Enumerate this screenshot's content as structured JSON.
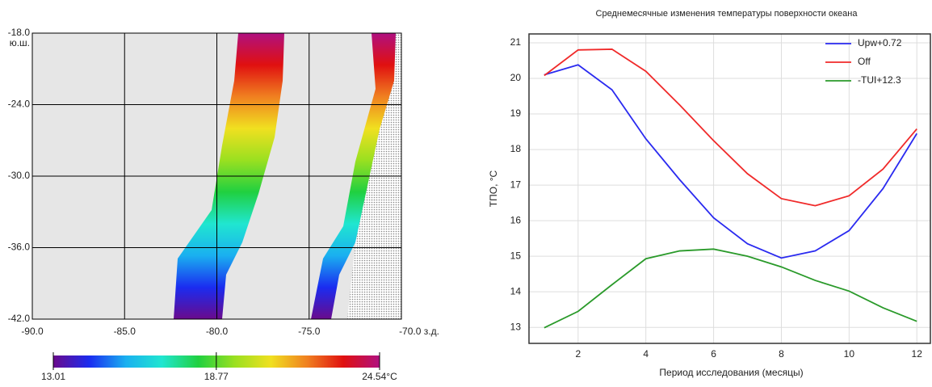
{
  "chart_data": [
    {
      "type": "map",
      "xlim": [
        -90,
        -70
      ],
      "ylim": [
        -42,
        -18
      ],
      "xticks": [
        {
          "value": -90,
          "label": "-90.0"
        },
        {
          "value": -85,
          "label": "-85.0"
        },
        {
          "value": -80,
          "label": "-80.0"
        },
        {
          "value": -75,
          "label": "-75.0"
        },
        {
          "value": -70,
          "label": "-70.0 з.д."
        }
      ],
      "yticks": [
        {
          "value": -18,
          "label": "-18.0"
        },
        {
          "value": -24,
          "label": "-24.0"
        },
        {
          "value": -30,
          "label": "-30.0"
        },
        {
          "value": -36,
          "label": "-36.0"
        },
        {
          "value": -42,
          "label": "-42.0"
        }
      ],
      "y_unit": "ю.ш.",
      "grid": true,
      "colormap": [
        "#6a0a8c",
        "#1a2cf0",
        "#1ab0f0",
        "#20e6d0",
        "#20d040",
        "#9ae020",
        "#f0e020",
        "#f08020",
        "#e01010",
        "#b01080"
      ],
      "colorbar": {
        "range": [
          13.01,
          24.54
        ],
        "ticks": [
          {
            "value": 13.01,
            "label": "13.01"
          },
          {
            "value": 18.77,
            "label": "18.77"
          },
          {
            "value": 24.54,
            "label": "24.54°C"
          }
        ]
      }
    },
    {
      "type": "line",
      "title": "Среднемесячные изменения температуры поверхности океана",
      "xlabel": "Период исследования (месяцы)",
      "ylabel": "ТПО, °С",
      "x": [
        1,
        2,
        3,
        4,
        5,
        6,
        7,
        8,
        9,
        10,
        11,
        12
      ],
      "series": [
        {
          "name": "Upw+0.72",
          "color": "#2a2af0",
          "values": [
            20.1,
            20.38,
            19.68,
            18.3,
            17.15,
            16.08,
            15.35,
            14.95,
            15.15,
            15.72,
            16.9,
            18.45
          ]
        },
        {
          "name": "Off",
          "color": "#f02a2a",
          "values": [
            20.08,
            20.8,
            20.82,
            20.2,
            19.25,
            18.25,
            17.32,
            16.62,
            16.42,
            16.7,
            17.45,
            18.58
          ]
        },
        {
          "name": "-TUI+12.3",
          "color": "#2a9a2a",
          "values": [
            12.99,
            13.45,
            14.2,
            14.93,
            15.15,
            15.2,
            15.0,
            14.7,
            14.32,
            14.02,
            13.55,
            13.17
          ]
        }
      ],
      "xlim": [
        0.55,
        12.4
      ],
      "ylim": [
        12.55,
        21.25
      ],
      "xticks": [
        2,
        4,
        6,
        8,
        10,
        12
      ],
      "yticks": [
        13,
        14,
        15,
        16,
        17,
        18,
        19,
        20,
        21
      ],
      "grid": true,
      "legend": "upper-right"
    }
  ]
}
